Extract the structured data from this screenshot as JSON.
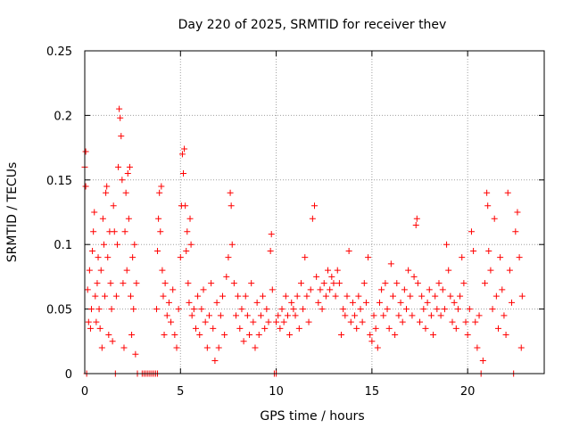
{
  "chart_data": {
    "type": "scatter",
    "title": "Day 220 of 2025, SRMTID for receiver thev",
    "xlabel": "GPS time / hours",
    "ylabel": "SRMTID / TECUs",
    "xlim": [
      0,
      24
    ],
    "ylim": [
      0,
      0.25
    ],
    "xticks": [
      0,
      5,
      10,
      15,
      20
    ],
    "xtick_labels": [
      "0",
      "5",
      "10",
      "15",
      "20"
    ],
    "yticks": [
      0,
      0.05,
      0.1,
      0.15,
      0.2,
      0.25
    ],
    "ytick_labels": [
      "0",
      "0.05",
      "0.1",
      "0.15",
      "0.2",
      "0.25"
    ],
    "grid": true,
    "marker": "+",
    "color": "#ff0000",
    "series": [
      {
        "name": "SRMTID",
        "points": [
          [
            0.0,
            0.16
          ],
          [
            0.05,
            0.172
          ],
          [
            0.05,
            0.145
          ],
          [
            0.1,
            0.0
          ],
          [
            0.15,
            0.065
          ],
          [
            0.2,
            0.04
          ],
          [
            0.25,
            0.08
          ],
          [
            0.3,
            0.035
          ],
          [
            0.35,
            0.05
          ],
          [
            0.4,
            0.095
          ],
          [
            0.45,
            0.11
          ],
          [
            0.5,
            0.125
          ],
          [
            0.55,
            0.06
          ],
          [
            0.6,
            0.04
          ],
          [
            0.65,
            0.07
          ],
          [
            0.7,
            0.09
          ],
          [
            0.75,
            0.05
          ],
          [
            0.8,
            0.035
          ],
          [
            0.85,
            0.08
          ],
          [
            0.9,
            0.02
          ],
          [
            0.95,
            0.12
          ],
          [
            1.0,
            0.1
          ],
          [
            1.05,
            0.06
          ],
          [
            1.1,
            0.14
          ],
          [
            1.15,
            0.145
          ],
          [
            1.2,
            0.09
          ],
          [
            1.25,
            0.03
          ],
          [
            1.3,
            0.11
          ],
          [
            1.35,
            0.07
          ],
          [
            1.4,
            0.05
          ],
          [
            1.45,
            0.025
          ],
          [
            1.5,
            0.13
          ],
          [
            1.55,
            0.11
          ],
          [
            1.6,
            0.0
          ],
          [
            1.65,
            0.06
          ],
          [
            1.7,
            0.1
          ],
          [
            1.75,
            0.16
          ],
          [
            1.8,
            0.205
          ],
          [
            1.85,
            0.198
          ],
          [
            1.9,
            0.184
          ],
          [
            1.95,
            0.15
          ],
          [
            2.0,
            0.07
          ],
          [
            2.05,
            0.02
          ],
          [
            2.1,
            0.11
          ],
          [
            2.15,
            0.14
          ],
          [
            2.2,
            0.08
          ],
          [
            2.25,
            0.155
          ],
          [
            2.3,
            0.12
          ],
          [
            2.35,
            0.16
          ],
          [
            2.4,
            0.06
          ],
          [
            2.45,
            0.03
          ],
          [
            2.5,
            0.09
          ],
          [
            2.55,
            0.05
          ],
          [
            2.6,
            0.1
          ],
          [
            2.65,
            0.015
          ],
          [
            2.7,
            0.07
          ],
          [
            2.75,
            0.0
          ],
          [
            3.0,
            0.0
          ],
          [
            3.1,
            0.0
          ],
          [
            3.2,
            0.0
          ],
          [
            3.3,
            0.0
          ],
          [
            3.4,
            0.0
          ],
          [
            3.5,
            0.0
          ],
          [
            3.6,
            0.0
          ],
          [
            3.7,
            0.0
          ],
          [
            3.8,
            0.0
          ],
          [
            3.75,
            0.05
          ],
          [
            3.8,
            0.095
          ],
          [
            3.85,
            0.12
          ],
          [
            3.9,
            0.14
          ],
          [
            3.95,
            0.11
          ],
          [
            4.0,
            0.145
          ],
          [
            4.05,
            0.08
          ],
          [
            4.1,
            0.06
          ],
          [
            4.15,
            0.03
          ],
          [
            4.2,
            0.07
          ],
          [
            4.3,
            0.045
          ],
          [
            4.4,
            0.055
          ],
          [
            4.5,
            0.04
          ],
          [
            4.6,
            0.065
          ],
          [
            4.7,
            0.03
          ],
          [
            4.8,
            0.02
          ],
          [
            4.9,
            0.05
          ],
          [
            5.0,
            0.09
          ],
          [
            5.05,
            0.13
          ],
          [
            5.1,
            0.17
          ],
          [
            5.15,
            0.155
          ],
          [
            5.2,
            0.174
          ],
          [
            5.25,
            0.13
          ],
          [
            5.3,
            0.095
          ],
          [
            5.35,
            0.11
          ],
          [
            5.4,
            0.07
          ],
          [
            5.45,
            0.055
          ],
          [
            5.5,
            0.12
          ],
          [
            5.55,
            0.1
          ],
          [
            5.6,
            0.045
          ],
          [
            5.7,
            0.05
          ],
          [
            5.8,
            0.035
          ],
          [
            5.9,
            0.06
          ],
          [
            6.0,
            0.03
          ],
          [
            6.1,
            0.05
          ],
          [
            6.2,
            0.065
          ],
          [
            6.3,
            0.04
          ],
          [
            6.4,
            0.02
          ],
          [
            6.5,
            0.045
          ],
          [
            6.6,
            0.07
          ],
          [
            6.7,
            0.035
          ],
          [
            6.8,
            0.01
          ],
          [
            6.9,
            0.055
          ],
          [
            7.0,
            0.02
          ],
          [
            7.1,
            0.045
          ],
          [
            7.2,
            0.06
          ],
          [
            7.3,
            0.03
          ],
          [
            7.4,
            0.075
          ],
          [
            7.5,
            0.09
          ],
          [
            7.6,
            0.14
          ],
          [
            7.65,
            0.13
          ],
          [
            7.7,
            0.1
          ],
          [
            7.8,
            0.07
          ],
          [
            7.9,
            0.045
          ],
          [
            8.0,
            0.06
          ],
          [
            8.1,
            0.035
          ],
          [
            8.2,
            0.05
          ],
          [
            8.3,
            0.025
          ],
          [
            8.4,
            0.06
          ],
          [
            8.5,
            0.045
          ],
          [
            8.6,
            0.03
          ],
          [
            8.7,
            0.07
          ],
          [
            8.8,
            0.04
          ],
          [
            8.9,
            0.02
          ],
          [
            9.0,
            0.055
          ],
          [
            9.1,
            0.03
          ],
          [
            9.2,
            0.045
          ],
          [
            9.3,
            0.06
          ],
          [
            9.4,
            0.035
          ],
          [
            9.5,
            0.05
          ],
          [
            9.6,
            0.04
          ],
          [
            9.7,
            0.095
          ],
          [
            9.75,
            0.108
          ],
          [
            9.8,
            0.065
          ],
          [
            9.9,
            0.0
          ],
          [
            10.0,
            0.0
          ],
          [
            10.0,
            0.04
          ],
          [
            10.1,
            0.045
          ],
          [
            10.2,
            0.035
          ],
          [
            10.3,
            0.05
          ],
          [
            10.4,
            0.04
          ],
          [
            10.5,
            0.06
          ],
          [
            10.6,
            0.045
          ],
          [
            10.7,
            0.03
          ],
          [
            10.8,
            0.055
          ],
          [
            10.9,
            0.05
          ],
          [
            11.0,
            0.045
          ],
          [
            11.1,
            0.06
          ],
          [
            11.2,
            0.035
          ],
          [
            11.3,
            0.07
          ],
          [
            11.4,
            0.05
          ],
          [
            11.5,
            0.09
          ],
          [
            11.6,
            0.06
          ],
          [
            11.7,
            0.04
          ],
          [
            11.8,
            0.065
          ],
          [
            11.9,
            0.12
          ],
          [
            12.0,
            0.13
          ],
          [
            12.1,
            0.075
          ],
          [
            12.2,
            0.055
          ],
          [
            12.3,
            0.065
          ],
          [
            12.4,
            0.05
          ],
          [
            12.5,
            0.07
          ],
          [
            12.6,
            0.06
          ],
          [
            12.7,
            0.08
          ],
          [
            12.8,
            0.065
          ],
          [
            12.9,
            0.075
          ],
          [
            13.0,
            0.07
          ],
          [
            13.1,
            0.06
          ],
          [
            13.2,
            0.08
          ],
          [
            13.3,
            0.07
          ],
          [
            13.4,
            0.03
          ],
          [
            13.5,
            0.05
          ],
          [
            13.6,
            0.045
          ],
          [
            13.7,
            0.06
          ],
          [
            13.8,
            0.095
          ],
          [
            13.9,
            0.04
          ],
          [
            14.0,
            0.055
          ],
          [
            14.1,
            0.045
          ],
          [
            14.2,
            0.035
          ],
          [
            14.3,
            0.06
          ],
          [
            14.4,
            0.05
          ],
          [
            14.5,
            0.04
          ],
          [
            14.6,
            0.07
          ],
          [
            14.7,
            0.055
          ],
          [
            14.8,
            0.09
          ],
          [
            14.9,
            0.03
          ],
          [
            15.0,
            0.025
          ],
          [
            15.1,
            0.045
          ],
          [
            15.2,
            0.035
          ],
          [
            15.3,
            0.02
          ],
          [
            15.4,
            0.055
          ],
          [
            15.5,
            0.065
          ],
          [
            15.6,
            0.045
          ],
          [
            15.7,
            0.07
          ],
          [
            15.8,
            0.05
          ],
          [
            15.9,
            0.035
          ],
          [
            16.0,
            0.085
          ],
          [
            16.1,
            0.06
          ],
          [
            16.2,
            0.03
          ],
          [
            16.3,
            0.07
          ],
          [
            16.4,
            0.045
          ],
          [
            16.5,
            0.055
          ],
          [
            16.6,
            0.04
          ],
          [
            16.7,
            0.065
          ],
          [
            16.8,
            0.05
          ],
          [
            16.9,
            0.08
          ],
          [
            17.0,
            0.06
          ],
          [
            17.1,
            0.045
          ],
          [
            17.2,
            0.075
          ],
          [
            17.3,
            0.115
          ],
          [
            17.35,
            0.12
          ],
          [
            17.4,
            0.07
          ],
          [
            17.5,
            0.04
          ],
          [
            17.6,
            0.06
          ],
          [
            17.7,
            0.05
          ],
          [
            17.8,
            0.035
          ],
          [
            17.9,
            0.055
          ],
          [
            18.0,
            0.065
          ],
          [
            18.1,
            0.045
          ],
          [
            18.2,
            0.03
          ],
          [
            18.3,
            0.06
          ],
          [
            18.4,
            0.05
          ],
          [
            18.5,
            0.07
          ],
          [
            18.6,
            0.045
          ],
          [
            18.7,
            0.065
          ],
          [
            18.8,
            0.05
          ],
          [
            18.9,
            0.1
          ],
          [
            19.0,
            0.08
          ],
          [
            19.1,
            0.06
          ],
          [
            19.2,
            0.04
          ],
          [
            19.3,
            0.055
          ],
          [
            19.4,
            0.035
          ],
          [
            19.5,
            0.05
          ],
          [
            19.6,
            0.06
          ],
          [
            19.7,
            0.09
          ],
          [
            19.8,
            0.07
          ],
          [
            19.9,
            0.04
          ],
          [
            20.0,
            0.03
          ],
          [
            20.1,
            0.05
          ],
          [
            20.2,
            0.11
          ],
          [
            20.3,
            0.095
          ],
          [
            20.4,
            0.04
          ],
          [
            20.5,
            0.02
          ],
          [
            20.6,
            0.045
          ],
          [
            20.7,
            0.0
          ],
          [
            20.8,
            0.01
          ],
          [
            20.9,
            0.07
          ],
          [
            21.0,
            0.14
          ],
          [
            21.05,
            0.13
          ],
          [
            21.1,
            0.095
          ],
          [
            21.2,
            0.08
          ],
          [
            21.3,
            0.05
          ],
          [
            21.4,
            0.12
          ],
          [
            21.5,
            0.06
          ],
          [
            21.6,
            0.035
          ],
          [
            21.7,
            0.09
          ],
          [
            21.8,
            0.065
          ],
          [
            21.9,
            0.045
          ],
          [
            22.0,
            0.03
          ],
          [
            22.1,
            0.14
          ],
          [
            22.2,
            0.08
          ],
          [
            22.3,
            0.055
          ],
          [
            22.4,
            0.0
          ],
          [
            22.5,
            0.11
          ],
          [
            22.6,
            0.125
          ],
          [
            22.7,
            0.09
          ],
          [
            22.8,
            0.02
          ],
          [
            22.85,
            0.06
          ]
        ]
      }
    ]
  }
}
